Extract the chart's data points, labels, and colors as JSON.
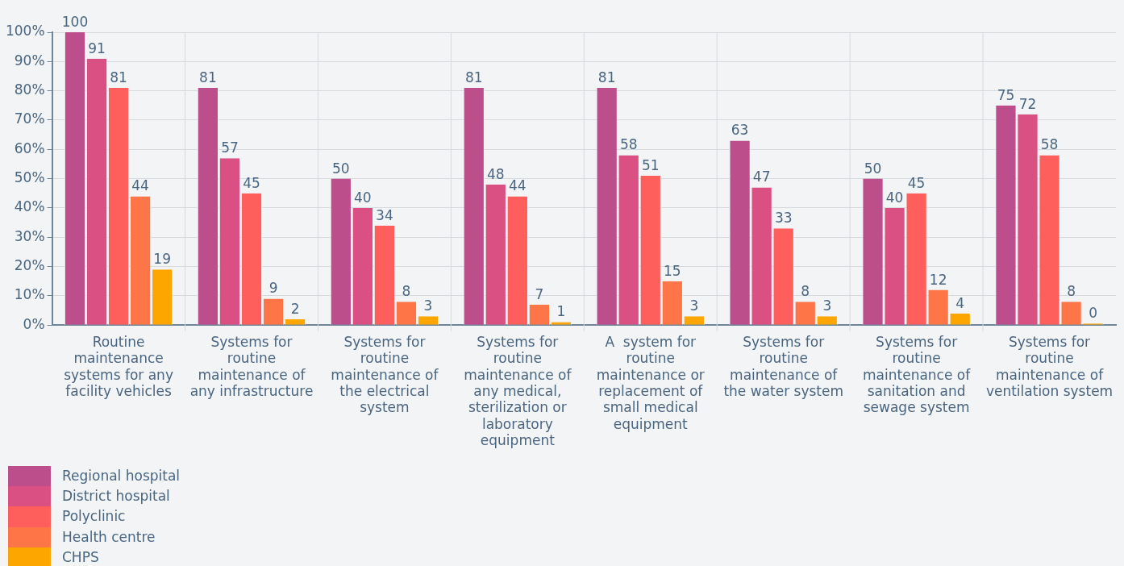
{
  "chart_data": {
    "type": "bar",
    "categories": [
      "Routine maintenance systems for any facility vehicles",
      "Systems for routine maintenance of any infrastructure",
      "Systems for routine maintenance of the electrical system",
      "Systems for routine maintenance of any medical, sterilization or laboratory equipment",
      "A  system for routine maintenance or replacement of small medical equipment",
      "Systems for routine maintenance of the water system",
      "Systems for routine maintenance of sanitation and sewage system",
      "Systems for routine maintenance of ventilation system"
    ],
    "series": [
      {
        "name": "Regional hospital",
        "color": "#bd4e8c",
        "values": [
          100,
          81,
          50,
          81,
          81,
          63,
          50,
          75
        ]
      },
      {
        "name": "District hospital",
        "color": "#da5083",
        "values": [
          91,
          57,
          40,
          48,
          58,
          47,
          40,
          72
        ]
      },
      {
        "name": "Polyclinic",
        "color": "#fe5f5d",
        "values": [
          81,
          45,
          34,
          44,
          51,
          33,
          45,
          58
        ]
      },
      {
        "name": "Health centre",
        "color": "#fe7548",
        "values": [
          44,
          9,
          8,
          7,
          15,
          8,
          12,
          8
        ]
      },
      {
        "name": "CHPS",
        "color": "#fea600",
        "values": [
          19,
          2,
          3,
          1,
          3,
          3,
          4,
          0
        ]
      }
    ],
    "ylim": [
      0,
      100
    ],
    "yticks": [
      {
        "value": 0,
        "label": "0%"
      },
      {
        "value": 10,
        "label": "10%"
      },
      {
        "value": 20,
        "label": "20%"
      },
      {
        "value": 30,
        "label": "30%"
      },
      {
        "value": 40,
        "label": "40%"
      },
      {
        "value": 50,
        "label": "50%"
      },
      {
        "value": 60,
        "label": "60%"
      },
      {
        "value": 70,
        "label": "70%"
      },
      {
        "value": 80,
        "label": "80%"
      },
      {
        "value": 90,
        "label": "90%"
      },
      {
        "value": 100,
        "label": "100%"
      }
    ],
    "grid": true,
    "data_labels": true,
    "legend": "bottom left"
  }
}
